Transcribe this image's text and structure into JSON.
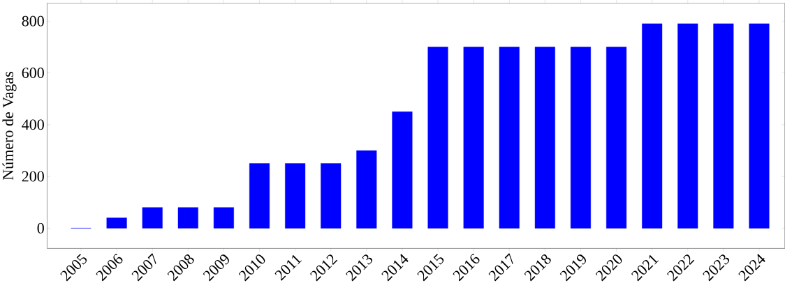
{
  "chart_data": {
    "type": "bar",
    "ylabel": "Número de Vagas",
    "categories": [
      "2005",
      "2006",
      "2007",
      "2008",
      "2009",
      "2010",
      "2011",
      "2012",
      "2013",
      "2014",
      "2015",
      "2016",
      "2017",
      "2018",
      "2019",
      "2020",
      "2021",
      "2022",
      "2023",
      "2024"
    ],
    "values": [
      0,
      40,
      80,
      80,
      80,
      250,
      250,
      250,
      300,
      450,
      700,
      700,
      700,
      700,
      700,
      700,
      790,
      790,
      790,
      790
    ],
    "color": "#0000ff",
    "ylim": [
      -78,
      869
    ],
    "yticks": [
      0,
      200,
      400,
      600,
      800
    ]
  }
}
